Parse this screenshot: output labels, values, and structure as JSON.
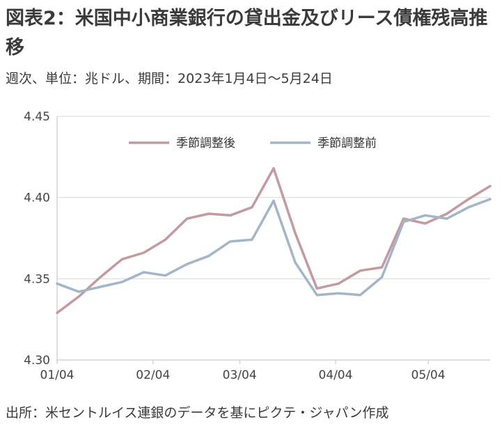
{
  "header": {
    "title": "図表2：米国中小商業銀行の貸出金及びリース債権残高推移",
    "subtitle": "週次、単位：兆ドル、期間：2023年1月4日～5月24日"
  },
  "footer": {
    "source": "出所：米セントルイス連銀のデータを基にピクテ・ジャパン作成"
  },
  "chart_data": {
    "type": "line",
    "x_tick_labels": [
      "01/04",
      "02/04",
      "03/04",
      "04/04",
      "05/04"
    ],
    "x_tick_week_index": [
      0,
      4.43,
      8.43,
      12.86,
      17.14
    ],
    "y_ticks": [
      "4.30",
      "4.35",
      "4.40",
      "4.45"
    ],
    "ylim": [
      4.3,
      4.45
    ],
    "grid": "horizontal",
    "legend_position": "top-center",
    "series": [
      {
        "name": "季節調整後",
        "color": "#c49aa0",
        "values": [
          4.329,
          4.339,
          4.351,
          4.362,
          4.366,
          4.374,
          4.387,
          4.39,
          4.389,
          4.394,
          4.418,
          4.378,
          4.344,
          4.347,
          4.355,
          4.357,
          4.387,
          4.384,
          4.39,
          4.399,
          4.407
        ]
      },
      {
        "name": "季節調整前",
        "color": "#a3b5c9",
        "values": [
          4.347,
          4.342,
          4.345,
          4.348,
          4.354,
          4.352,
          4.359,
          4.364,
          4.373,
          4.374,
          4.398,
          4.36,
          4.34,
          4.341,
          4.34,
          4.351,
          4.385,
          4.389,
          4.387,
          4.394,
          4.399
        ]
      }
    ]
  }
}
